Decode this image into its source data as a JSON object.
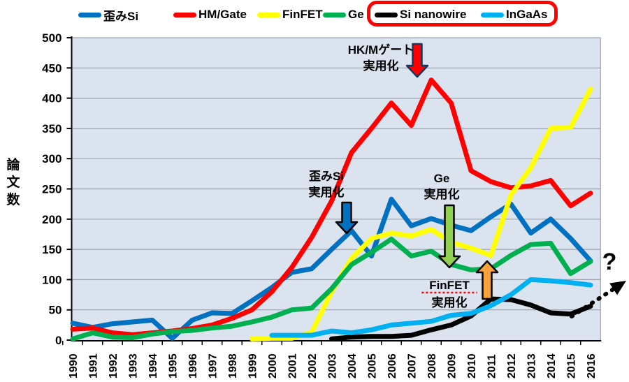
{
  "page": {
    "background": "#FFFFFF"
  },
  "chart_data": {
    "type": "line",
    "title": "",
    "ylabel": "論文数",
    "ylim": [
      0,
      500
    ],
    "ytick_step": 50,
    "grid": true,
    "legend_position": "top",
    "plot_bg": "#DBE3EF",
    "grid_color": "#9AA1AC",
    "x": [
      1990,
      1991,
      1992,
      1993,
      1994,
      1995,
      1996,
      1997,
      1998,
      1999,
      2000,
      2001,
      2002,
      2003,
      2004,
      2005,
      2006,
      2007,
      2008,
      2009,
      2010,
      2011,
      2012,
      2013,
      2014,
      2015,
      2016
    ],
    "series": [
      {
        "name": "歪みSi",
        "color": "#0070C0",
        "values": [
          28,
          21,
          27,
          30,
          33,
          3,
          33,
          45,
          44,
          65,
          87,
          112,
          118,
          150,
          181,
          139,
          233,
          189,
          201,
          190,
          181,
          204,
          225,
          177,
          200,
          168,
          131
        ]
      },
      {
        "name": "HM/Gate",
        "color": "#FF0000",
        "values": [
          18,
          20,
          12,
          9,
          12,
          15,
          19,
          25,
          36,
          50,
          80,
          120,
          170,
          230,
          310,
          350,
          392,
          355,
          430,
          392,
          280,
          262,
          252,
          255,
          264,
          222,
          243
        ]
      },
      {
        "name": "FinFET",
        "color": "#FFFF00",
        "values": [
          null,
          null,
          null,
          null,
          null,
          null,
          null,
          null,
          null,
          2,
          3,
          3,
          13,
          80,
          135,
          168,
          177,
          172,
          183,
          162,
          152,
          140,
          240,
          285,
          350,
          352,
          415
        ]
      },
      {
        "name": "Ge",
        "color": "#00B050",
        "values": [
          2,
          12,
          5,
          4,
          10,
          14,
          16,
          20,
          23,
          30,
          38,
          50,
          53,
          85,
          125,
          145,
          167,
          139,
          147,
          125,
          116,
          118,
          140,
          158,
          160,
          110,
          130
        ]
      },
      {
        "name": "Si nanowire",
        "color": "#000000",
        "boxed": true,
        "values": [
          null,
          null,
          null,
          null,
          null,
          null,
          null,
          null,
          null,
          null,
          null,
          null,
          null,
          2,
          5,
          6,
          6,
          8,
          17,
          25,
          40,
          68,
          67,
          58,
          45,
          43,
          56
        ]
      },
      {
        "name": "InGaAs",
        "color": "#00B0F0",
        "boxed": true,
        "values": [
          null,
          null,
          null,
          null,
          null,
          null,
          null,
          null,
          null,
          null,
          8,
          8,
          8,
          15,
          12,
          17,
          25,
          28,
          31,
          41,
          44,
          57,
          75,
          100,
          98,
          95,
          91
        ]
      }
    ],
    "legend_box_color": "#FF0000",
    "annotations": [
      {
        "id": "strained-si",
        "lines": [
          "歪みSi",
          "実用化"
        ],
        "tx": 467,
        "ty1": 258,
        "ty2": 281,
        "arrow": {
          "dir": "down",
          "x": 496,
          "y1": 290,
          "y2": 334,
          "fill": "#0070C0",
          "stroke": "#000000"
        }
      },
      {
        "id": "hkm-gate",
        "lines": [
          "HK/Mゲート",
          "実用化"
        ],
        "tx": 545,
        "ty1": 77,
        "ty2": 100,
        "arrow": {
          "dir": "down",
          "x": 597,
          "y1": 63,
          "y2": 110,
          "fill": "#FF0000",
          "stroke": "#17375E"
        }
      },
      {
        "id": "ge",
        "lines": [
          "Ge",
          "実用化"
        ],
        "tx": 632,
        "ty1": 261,
        "ty2": 284,
        "arrow": {
          "dir": "down",
          "x": 643,
          "y1": 294,
          "y2": 383,
          "fill": "#92D050",
          "stroke": "#000000"
        }
      },
      {
        "id": "finfet",
        "lines": [
          "FinFET",
          "実用化"
        ],
        "tx": 643,
        "ty1": 414,
        "ty2": 439,
        "underline_first": true,
        "underline_color": "#FF0000",
        "arrow": {
          "dir": "up",
          "x": 697,
          "y1": 428,
          "y2": 374,
          "fill": "#F9A13A",
          "stroke": "#000000"
        }
      }
    ],
    "question_annotation": {
      "text": "?",
      "x": 872,
      "y": 386
    },
    "dashed_arrow": {
      "x1": 818,
      "y1": 453,
      "x2": 896,
      "y2": 402,
      "color": "#000000"
    }
  }
}
